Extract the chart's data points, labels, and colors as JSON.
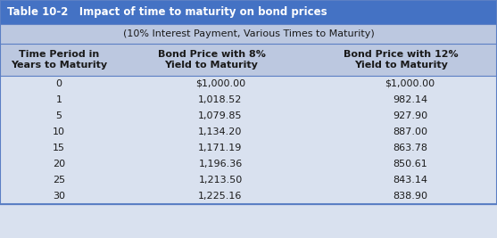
{
  "title": "Table 10-2   Impact of time to maturity on bond prices",
  "subtitle": "(10% Interest Payment, Various Times to Maturity)",
  "col_headers": [
    "Time Period in\nYears to Maturity",
    "Bond Price with 8%\nYield to Maturity",
    "Bond Price with 12%\nYield to Maturity"
  ],
  "time_periods": [
    "0",
    "1",
    "5",
    "10",
    "15",
    "20",
    "25",
    "30"
  ],
  "price_8pct": [
    "$1,000.00",
    "1,018.52",
    "1,079.85",
    "1,134.20",
    "1,171.19",
    "1,196.36",
    "1,213.50",
    "1,225.16"
  ],
  "price_12pct": [
    "$1,000.00",
    "982.14",
    "927.90",
    "887.00",
    "863.78",
    "850.61",
    "843.14",
    "838.90"
  ],
  "header_bg": "#4472C4",
  "header_text": "#FFFFFF",
  "subheader_bg": "#BCC8E0",
  "col_header_bg": "#BCC8E0",
  "row_bg": "#D9E1EF",
  "border_color": "#5B7FC4",
  "title_fontsize": 8.5,
  "subtitle_fontsize": 8.0,
  "col_header_fontsize": 8.0,
  "data_fontsize": 8.0
}
